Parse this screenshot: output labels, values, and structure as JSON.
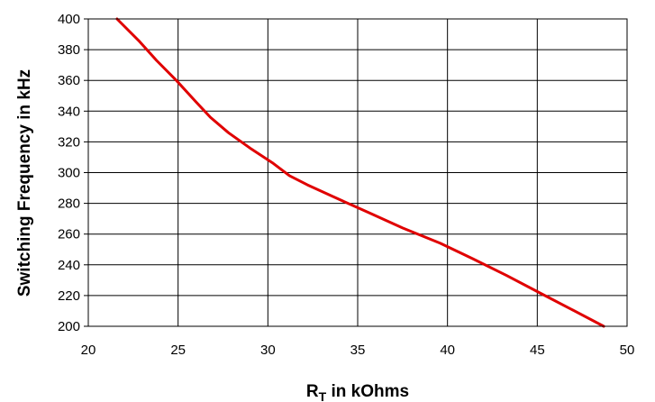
{
  "chart_data": {
    "type": "line",
    "title": "",
    "xlabel": {
      "main": "R",
      "sub": "T",
      "rest": " in kOhms"
    },
    "ylabel": "Switching Frequency in kHz",
    "xlim": [
      20,
      50
    ],
    "ylim": [
      200,
      400
    ],
    "xticks": [
      20,
      25,
      30,
      35,
      40,
      45,
      50
    ],
    "yticks": [
      200,
      220,
      240,
      260,
      280,
      300,
      320,
      340,
      360,
      380,
      400
    ],
    "grid": true,
    "series": [
      {
        "color": "#e00000",
        "x": [
          21.6,
          22.8,
          23.8,
          24.9,
          26.0,
          26.8,
          27.8,
          29.0,
          30.3,
          31.2,
          32.2,
          33.7,
          35.6,
          37.5,
          39.6,
          41.4,
          43.3,
          45.1,
          46.9,
          48.7
        ],
        "y": [
          400,
          386,
          373,
          360,
          346,
          336,
          326,
          316,
          306,
          298,
          292,
          284,
          274,
          264,
          254,
          244,
          233,
          222,
          211,
          200
        ]
      }
    ]
  }
}
